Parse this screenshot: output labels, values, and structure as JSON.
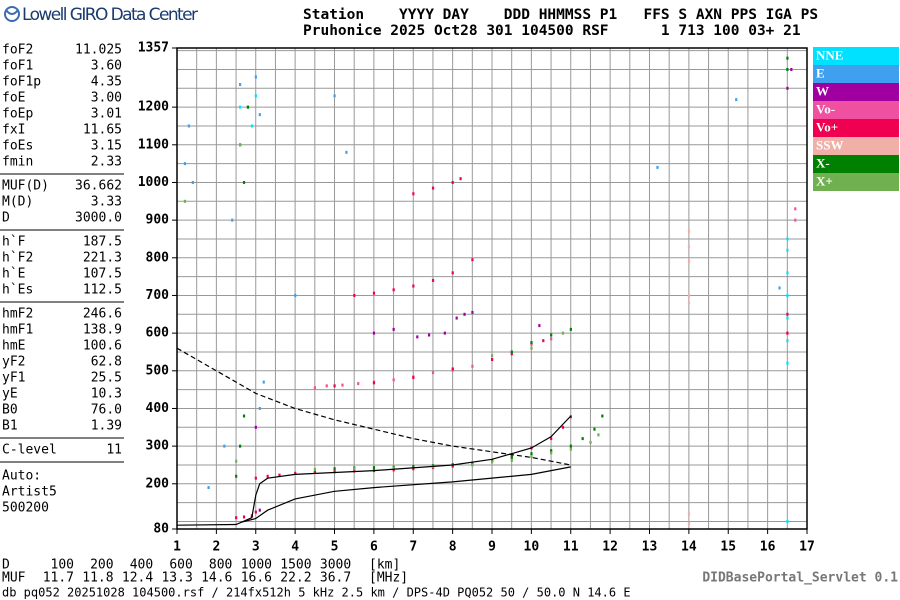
{
  "header": {
    "logo": "Lowell GIRO Data Center",
    "line1": "Station    YYYY DAY    DDD HHMMSS P1   FFS S AXN PPS IGA PS",
    "line2": "Pruhonice 2025 Oct28 301 104500 RSF      1 713 100 03+ 21"
  },
  "params": [
    [
      [
        "foF2",
        "11.025"
      ],
      [
        "foF1",
        "3.60"
      ],
      [
        "foF1p",
        "4.35"
      ],
      [
        "foE",
        "3.00"
      ],
      [
        "foEp",
        "3.01"
      ],
      [
        "fxI",
        "11.65"
      ],
      [
        "foEs",
        "3.15"
      ],
      [
        "fmin",
        "2.33"
      ]
    ],
    [
      [
        "MUF(D)",
        "36.662"
      ],
      [
        "M(D)",
        "3.33"
      ],
      [
        "D",
        "3000.0"
      ]
    ],
    [
      [
        "h`F",
        "187.5"
      ],
      [
        "h`F2",
        "221.3"
      ],
      [
        "h`E",
        "107.5"
      ],
      [
        "h`Es",
        "112.5"
      ]
    ],
    [
      [
        "hmF2",
        "246.6"
      ],
      [
        "hmF1",
        "138.9"
      ],
      [
        "hmE",
        "100.6"
      ],
      [
        "yF2",
        "62.8"
      ],
      [
        "yF1",
        "25.5"
      ],
      [
        "yE",
        "10.3"
      ],
      [
        "B0",
        "76.0"
      ],
      [
        "B1",
        "1.39"
      ]
    ],
    [
      [
        "C-level",
        "11"
      ]
    ]
  ],
  "autoscaling": [
    "Auto:",
    "Artist5",
    "500200"
  ],
  "muf_table": {
    "d_label": "D",
    "d": [
      "100",
      "200",
      "400",
      "600",
      "800",
      "1000",
      "1500",
      "3000"
    ],
    "d_unit": "[km]",
    "muf_label": "MUF",
    "muf": [
      "11.7",
      "11.8",
      "12.4",
      "13.3",
      "14.6",
      "16.6",
      "22.2",
      "36.7"
    ],
    "muf_unit": "[MHz]"
  },
  "servlet": "DIDBasePortal_Servlet 0.1",
  "footer": "db pq052 20251028 104500.rsf / 214fx512h 5 kHz 2.5 km / DPS-4D PQ052 50 / 50.0 N 14.6 E",
  "chart_data": {
    "type": "scatter",
    "xlim": [
      1,
      17
    ],
    "xticks": [
      1,
      2,
      3,
      4,
      5,
      6,
      7,
      8,
      9,
      10,
      11,
      12,
      13,
      14,
      15,
      16,
      17
    ],
    "xgrid": [
      1.5,
      2,
      2.5,
      3,
      3.5,
      4,
      4.5,
      5,
      5.5,
      6,
      6.5,
      7,
      7.5,
      8,
      8.5,
      9,
      9.5,
      10,
      10.5,
      11,
      11.5,
      12,
      12.5,
      13,
      13.5,
      14,
      14.5,
      15,
      15.5,
      16,
      16.5
    ],
    "ylim": [
      80,
      1357
    ],
    "yticks": [
      80,
      200,
      300,
      400,
      500,
      600,
      700,
      800,
      900,
      1000,
      1100,
      1200,
      1357
    ],
    "ygrid": [
      100,
      150,
      200,
      250,
      300,
      350,
      400,
      450,
      500,
      550,
      600,
      650,
      700,
      750,
      800,
      850,
      900,
      950,
      1000,
      1050,
      1100,
      1150,
      1200,
      1250,
      1300,
      1350
    ],
    "grid": true,
    "series": [
      {
        "name": "NNE",
        "color": "#00e0ff",
        "x": [
          16.5,
          16.5,
          16.5,
          16.5,
          16.5,
          16.5,
          16.5,
          16.5,
          2.9,
          3.0,
          2.6,
          16.5
        ],
        "values": [
          520,
          580,
          640,
          700,
          760,
          820,
          850,
          1300,
          1150,
          1230,
          1200,
          100
        ]
      },
      {
        "name": "E",
        "color": "#40a0f0",
        "x": [
          1.2,
          1.3,
          1.4,
          2.6,
          2.8,
          3.0,
          3.1,
          2.4,
          5.0,
          5.3,
          16.3,
          15.2,
          13.2,
          3.2,
          3.1,
          4.0,
          2.2,
          1.8
        ],
        "values": [
          1050,
          1150,
          1000,
          1260,
          1200,
          1280,
          1180,
          900,
          1230,
          1080,
          720,
          1220,
          1040,
          470,
          400,
          700,
          300,
          190
        ]
      },
      {
        "name": "W",
        "color": "#a000a0",
        "x": [
          7.1,
          7.4,
          7.8,
          8.1,
          8.3,
          8.5,
          6.0,
          6.5,
          16.5,
          16.6,
          10.2,
          3.0,
          3.1
        ],
        "values": [
          590,
          595,
          600,
          640,
          650,
          655,
          600,
          610,
          1250,
          1300,
          620,
          350,
          130
        ]
      },
      {
        "name": "Vo-",
        "color": "#f050a0",
        "x": [
          4.5,
          4.8,
          5.2,
          5.6,
          6.0,
          6.5,
          7.0,
          7.5,
          8.0,
          8.5,
          10.0,
          10.5,
          16.5,
          16.7,
          16.7
        ],
        "values": [
          455,
          460,
          462,
          466,
          470,
          476,
          484,
          495,
          502,
          512,
          570,
          585,
          600,
          900,
          930
        ]
      },
      {
        "name": "Vo+",
        "color": "#f00050",
        "x": [
          3.0,
          3.3,
          3.6,
          4.0,
          4.5,
          5.0,
          5.5,
          6.0,
          6.5,
          7.0,
          7.5,
          8.0,
          8.5,
          9.0,
          9.5,
          10.0,
          10.5,
          10.8,
          11.0,
          5.0,
          6.0,
          7.0,
          8.0,
          9.0,
          9.5,
          10.3,
          5.5,
          6.0,
          6.5,
          7.0,
          7.5,
          8.0,
          8.5,
          7.0,
          7.5,
          8.0,
          8.2,
          2.5,
          2.7,
          2.9,
          3.0,
          16.5,
          16.5
        ],
        "values": [
          215,
          220,
          223,
          228,
          230,
          232,
          234,
          235,
          237,
          240,
          243,
          247,
          252,
          262,
          275,
          295,
          320,
          350,
          378,
          460,
          468,
          482,
          505,
          530,
          545,
          580,
          700,
          706,
          715,
          725,
          740,
          760,
          795,
          970,
          985,
          1000,
          1010,
          110,
          112,
          115,
          125,
          600,
          650
        ]
      },
      {
        "name": "SSW",
        "color": "#f0b0a8",
        "x": [
          14,
          14,
          14,
          14,
          14,
          14,
          14
        ],
        "values": [
          870,
          830,
          790,
          700,
          680,
          120,
          95
        ]
      },
      {
        "name": "X-",
        "color": "#008000",
        "x": [
          2.5,
          2.6,
          2.7,
          5.0,
          5.5,
          6.0,
          6.5,
          7.0,
          7.5,
          8.0,
          8.5,
          9.0,
          9.5,
          10.0,
          10.5,
          11.0,
          11.3,
          11.6,
          11.8,
          9.5,
          10.0,
          10.5,
          11.0,
          16.5,
          16.5,
          2.6,
          2.7,
          2.8
        ],
        "values": [
          220,
          300,
          380,
          240,
          242,
          243,
          244,
          246,
          248,
          251,
          255,
          262,
          270,
          280,
          288,
          300,
          320,
          345,
          380,
          550,
          575,
          595,
          610,
          1300,
          1330,
          1100,
          1000,
          1200
        ]
      },
      {
        "name": "X+",
        "color": "#70b050",
        "x": [
          4.5,
          5.5,
          6.5,
          7.5,
          8.5,
          9.0,
          9.5,
          10.0,
          10.5,
          11.0,
          11.5,
          11.7,
          9.0,
          10.0,
          10.8,
          2.5,
          2.6,
          1.2
        ],
        "values": [
          238,
          240,
          242,
          245,
          250,
          258,
          262,
          272,
          282,
          292,
          310,
          330,
          540,
          560,
          600,
          260,
          1100,
          950
        ]
      }
    ],
    "curves": [
      {
        "color": "#000000",
        "dashed": false,
        "x": [
          1,
          2.5,
          2.9,
          3.0,
          3.1,
          3.3,
          4,
          6,
          8,
          9,
          10,
          10.5,
          11
        ],
        "values": [
          90,
          92,
          110,
          170,
          200,
          215,
          225,
          235,
          250,
          265,
          295,
          325,
          380
        ]
      },
      {
        "color": "#000000",
        "dashed": false,
        "x": [
          2.6,
          3,
          3.3,
          4,
          5,
          6,
          8,
          10,
          11
        ],
        "values": [
          97,
          108,
          130,
          160,
          180,
          190,
          205,
          225,
          245
        ]
      },
      {
        "color": "#000000",
        "dashed": true,
        "x": [
          1,
          2,
          3,
          4,
          5,
          6,
          7,
          8,
          9,
          10,
          11
        ],
        "values": [
          560,
          500,
          440,
          400,
          370,
          345,
          320,
          300,
          285,
          270,
          250
        ]
      }
    ]
  }
}
